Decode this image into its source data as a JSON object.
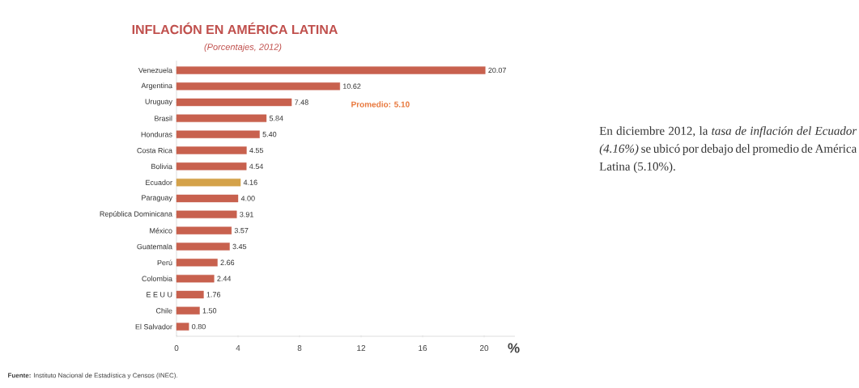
{
  "chart_data": {
    "type": "bar",
    "orientation": "horizontal",
    "title": "INFLACIÓN EN AMÉRICA LATINA",
    "subtitle": "(Porcentajes, 2012)",
    "xlabel": "%",
    "categories": [
      "Venezuela",
      "Argentina",
      "Uruguay",
      "Brasil",
      "Honduras",
      "Costa Rica",
      "Bolivia",
      "Ecuador",
      "Paraguay",
      "República Dominicana",
      "México",
      "Guatemala",
      "Perú",
      "Colombia",
      "E E U U",
      "Chile",
      "El Salvador"
    ],
    "values": [
      20.07,
      10.62,
      7.48,
      5.84,
      5.4,
      4.55,
      4.54,
      4.16,
      4.0,
      3.91,
      3.57,
      3.45,
      2.66,
      2.44,
      1.76,
      1.5,
      0.8
    ],
    "value_labels": [
      "20.07",
      "10.62",
      "7.48",
      "5.84",
      "5.40",
      "4.55",
      "4.54",
      "4.16",
      "4.00",
      "3.91",
      "3.57",
      "3.45",
      "2.66",
      "2.44",
      "1.76",
      "1.50",
      "0.80"
    ],
    "colors": [
      "#c8614e",
      "#c8614e",
      "#c8614e",
      "#c8614e",
      "#c8614e",
      "#c8614e",
      "#c8614e",
      "#d4a24a",
      "#c8614e",
      "#c8614e",
      "#c8614e",
      "#c8614e",
      "#c8614e",
      "#c8614e",
      "#c8614e",
      "#c8614e",
      "#c8614e"
    ],
    "xlim": [
      0,
      22
    ],
    "xticks": [
      0,
      4,
      8,
      12,
      16,
      20
    ],
    "grid": false,
    "annotations": [
      "Promedio: 5.10",
      "En diciembre 2012, la *tasa de inflación del Ecuador (4.16%)* se ubicó por debajo del promedio de América Latina (5.10%).",
      "**Fuente:** Instituto Nacional de Estadística y Censos (INEC)."
    ]
  }
}
